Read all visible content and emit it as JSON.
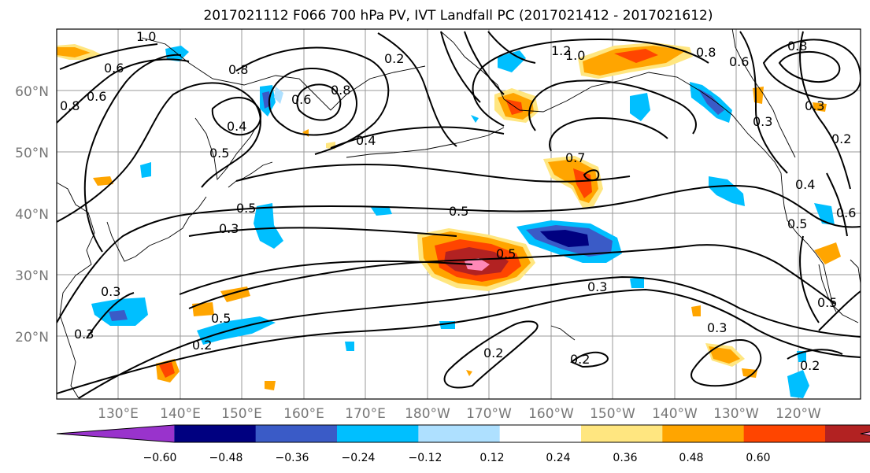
{
  "title": "2017021112 F066 700 hPa PV, IVT Landfall PC (2017021412 - 2017021612)",
  "map": {
    "lat_labels": [
      "60°N",
      "50°N",
      "40°N",
      "30°N",
      "20°N"
    ],
    "lon_labels": [
      "130°E",
      "140°E",
      "150°E",
      "160°E",
      "170°E",
      "180°W",
      "170°W",
      "160°W",
      "150°W",
      "140°W",
      "130°W",
      "120°W"
    ],
    "contour_labels": [
      "1.0",
      "0.6",
      "0.8",
      "0.6",
      "0.8",
      "0.4",
      "0.5",
      "0.4",
      "0.8",
      "0.6",
      "0.2",
      "1.2",
      "1.0",
      "0.8",
      "0.6",
      "0.8",
      "0.3",
      "0.3",
      "0.2",
      "0.4",
      "0.7",
      "0.5",
      "0.3",
      "0.5",
      "0.5",
      "0.5",
      "0.6",
      "0.3",
      "0.5",
      "0.2",
      "0.2",
      "0.2",
      "0.3",
      "0.3",
      "0.2",
      "0.5",
      "0.3"
    ]
  },
  "colorbar": {
    "ticks": [
      "−0.60",
      "−0.48",
      "−0.36",
      "−0.24",
      "−0.12",
      "0.12",
      "0.24",
      "0.36",
      "0.48",
      "0.60"
    ],
    "colors": [
      "#9933cc",
      "#000080",
      "#3a5bc7",
      "#00bfff",
      "#aee0ff",
      "#ffffff",
      "#ffe680",
      "#ffa500",
      "#ff4500",
      "#b22222",
      "#ff88b8"
    ]
  }
}
